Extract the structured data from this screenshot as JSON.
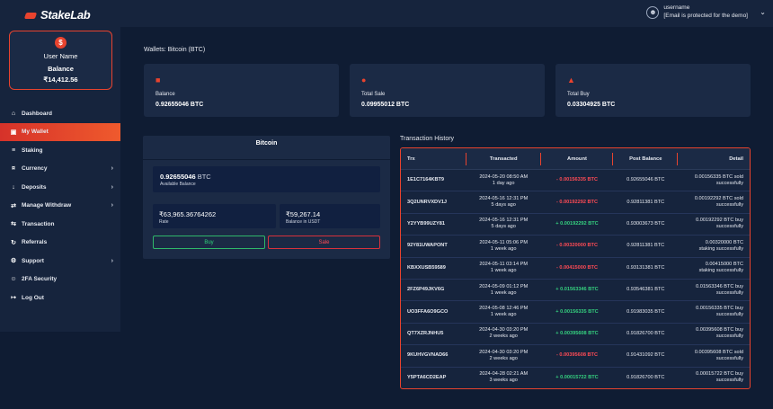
{
  "app": {
    "logo_text_a": "Stake",
    "logo_text_b": "Lab"
  },
  "sidebar": {
    "user_name": "User Name",
    "balance_label": "Balance",
    "balance_value": "₹14,412.56",
    "items": [
      {
        "label": "Dashboard",
        "icon": "home-icon",
        "active": false,
        "has_chevron": false
      },
      {
        "label": "My Wallet",
        "icon": "wallet-icon",
        "active": true,
        "has_chevron": false
      },
      {
        "label": "Staking",
        "icon": "staking-icon",
        "active": false,
        "has_chevron": false
      },
      {
        "label": "Currency",
        "icon": "currency-icon",
        "active": false,
        "has_chevron": true
      },
      {
        "label": "Deposits",
        "icon": "deposit-icon",
        "active": false,
        "has_chevron": true
      },
      {
        "label": "Manage Withdraw",
        "icon": "withdraw-icon",
        "active": false,
        "has_chevron": true
      },
      {
        "label": "Transaction",
        "icon": "transaction-icon",
        "active": false,
        "has_chevron": false
      },
      {
        "label": "Referrals",
        "icon": "referrals-icon",
        "active": false,
        "has_chevron": false
      },
      {
        "label": "Support",
        "icon": "support-icon",
        "active": false,
        "has_chevron": true
      },
      {
        "label": "2FA Security",
        "icon": "security-icon",
        "active": false,
        "has_chevron": false
      },
      {
        "label": "Log Out",
        "icon": "logout-icon",
        "active": false,
        "has_chevron": false
      }
    ]
  },
  "header": {
    "username": "username",
    "email": "[Email is protected for the demo]"
  },
  "main": {
    "page_title": "Wallets: Bitcoin (BTC)",
    "stats": [
      {
        "label": "Balance",
        "value": "0.92655046 BTC",
        "icon": "money-icon"
      },
      {
        "label": "Total Sale",
        "value": "0.09955012 BTC",
        "icon": "sale-icon"
      },
      {
        "label": "Total Buy",
        "value": "0.03304925 BTC",
        "icon": "buy-icon"
      }
    ],
    "wallet": {
      "title": "Bitcoin",
      "available_value": "0.92655046",
      "available_unit": "BTC",
      "available_label": "Available Balance",
      "rate_value": "₹63,965.36764262",
      "rate_label": "Rate",
      "usdt_value": "₹59,267.14",
      "usdt_label": "Balance in USDT",
      "buy_label": "Buy",
      "sell_label": "Sale"
    },
    "transactions": {
      "title": "Transaction History",
      "columns": [
        "Trx",
        "Transacted",
        "Amount",
        "Post Balance",
        "Detail"
      ],
      "rows": [
        {
          "trx": "1E1C7164KBT9",
          "date": "2024-05-20 08:50 AM",
          "ago": "1 day ago",
          "amount": "- 0.00156335 BTC",
          "sign": "neg",
          "post": "0.92655046 BTC",
          "detail1": "0.00156335 BTC sold",
          "detail2": "successfully"
        },
        {
          "trx": "3Q2UNRVXDV1J",
          "date": "2024-05-16 12:31 PM",
          "ago": "5 days ago",
          "amount": "- 0.00192292 BTC",
          "sign": "neg",
          "post": "0.92811381 BTC",
          "detail1": "0.00192292 BTC sold",
          "detail2": "successfully"
        },
        {
          "trx": "Y2YYB99UZY81",
          "date": "2024-05-16 12:31 PM",
          "ago": "5 days ago",
          "amount": "+ 0.00192292 BTC",
          "sign": "pos",
          "post": "0.93003673 BTC",
          "detail1": "0.00192292 BTC buy",
          "detail2": "successfully"
        },
        {
          "trx": "92Y81UWAPONT",
          "date": "2024-05-11 05:06 PM",
          "ago": "1 week ago",
          "amount": "- 0.00320000 BTC",
          "sign": "neg",
          "post": "0.92811381 BTC",
          "detail1": "0.00320000 BTC",
          "detail2": "staking successfully"
        },
        {
          "trx": "KBXXUSB59589",
          "date": "2024-05-11 03:14 PM",
          "ago": "1 week ago",
          "amount": "- 0.00415000 BTC",
          "sign": "neg",
          "post": "0.93131381 BTC",
          "detail1": "0.00415000 BTC",
          "detail2": "staking successfully"
        },
        {
          "trx": "2FZ6P49JKV6G",
          "date": "2024-05-09 01:12 PM",
          "ago": "1 week ago",
          "amount": "+ 0.01563346 BTC",
          "sign": "pos",
          "post": "0.93546381 BTC",
          "detail1": "0.01563346 BTC buy",
          "detail2": "successfully"
        },
        {
          "trx": "UO3FFA6O9GCO",
          "date": "2024-05-08 12:46 PM",
          "ago": "1 week ago",
          "amount": "+ 0.00156335 BTC",
          "sign": "pos",
          "post": "0.91983035 BTC",
          "detail1": "0.00156335 BTC buy",
          "detail2": "successfully"
        },
        {
          "trx": "QT7XZRJNHU5",
          "date": "2024-04-30 03:20 PM",
          "ago": "2 weeks ago",
          "amount": "+ 0.00395608 BTC",
          "sign": "pos",
          "post": "0.91826700 BTC",
          "detail1": "0.00395608 BTC buy",
          "detail2": "successfully"
        },
        {
          "trx": "9KUHVGVNAD66",
          "date": "2024-04-30 03:20 PM",
          "ago": "2 weeks ago",
          "amount": "- 0.00395608 BTC",
          "sign": "neg",
          "post": "0.91431092 BTC",
          "detail1": "0.00395608 BTC sold",
          "detail2": "successfully"
        },
        {
          "trx": "Y5PTA6CD2EAP",
          "date": "2024-04-28 02:21 AM",
          "ago": "3 weeks ago",
          "amount": "+ 0.00015722 BTC",
          "sign": "pos",
          "post": "0.91826700 BTC",
          "detail1": "0.00015722 BTC buy",
          "detail2": "successfully"
        }
      ]
    }
  },
  "colors": {
    "accent": "#e8432e",
    "positive": "#35d07f",
    "negative": "#ff4b55",
    "background": "#0f1c33",
    "panel": "#1b2a45"
  }
}
